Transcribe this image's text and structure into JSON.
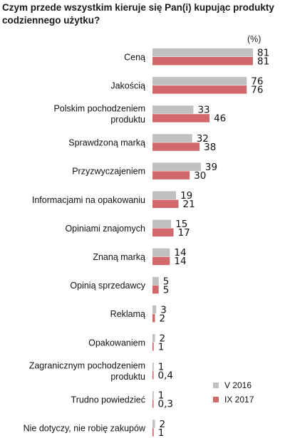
{
  "title": "Czym przede wszystkim kieruje się Pan(i) kupując produkty codziennego użytku?",
  "unit": "(%)",
  "legend": [
    {
      "label": "V 2016",
      "color": "#c0c0c0"
    },
    {
      "label": "IX 2017",
      "color": "#d2686c"
    }
  ],
  "chart_data": {
    "type": "bar",
    "orientation": "horizontal",
    "title": "Czym przede wszystkim kieruje się Pan(i) kupując produkty codziennego użytku?",
    "ylabel": "(%)",
    "xlim": [
      0,
      81
    ],
    "grid": false,
    "legend_position": "bottom-right",
    "categories": [
      [
        "Ceną"
      ],
      [
        "Jakością"
      ],
      [
        "Polskim pochodzeniem",
        "produktu"
      ],
      [
        "Sprawdzoną marką"
      ],
      [
        "Przyzwyczajeniem"
      ],
      [
        "Informacjami na opakowaniu"
      ],
      [
        "Opiniami znajomych"
      ],
      [
        "Znaną marką"
      ],
      [
        "Opinią sprzedawcy"
      ],
      [
        "Reklamą"
      ],
      [
        "Opakowaniem"
      ],
      [
        "Zagranicznym pochodzeniem",
        "produktu"
      ],
      [
        "Trudno powiedzieć"
      ],
      [
        "Nie dotyczy, nie robię zakupów"
      ]
    ],
    "series": [
      {
        "name": "V 2016",
        "color": "#c0c0c0",
        "values": [
          81,
          76,
          33,
          32,
          39,
          19,
          15,
          14,
          5,
          3,
          2,
          1,
          1,
          2
        ],
        "labels": [
          "81",
          "76",
          "33",
          "32",
          "39",
          "19",
          "15",
          "14",
          "5",
          "3",
          "2",
          "1",
          "1",
          "2"
        ]
      },
      {
        "name": "IX 2017",
        "color": "#d2686c",
        "values": [
          81,
          76,
          46,
          38,
          30,
          21,
          17,
          14,
          5,
          2,
          1,
          0.4,
          0.3,
          1
        ],
        "labels": [
          "81",
          "76",
          "46",
          "38",
          "30",
          "21",
          "17",
          "14",
          "5",
          "2",
          "1",
          "0,4",
          "0,3",
          "1"
        ]
      }
    ]
  }
}
